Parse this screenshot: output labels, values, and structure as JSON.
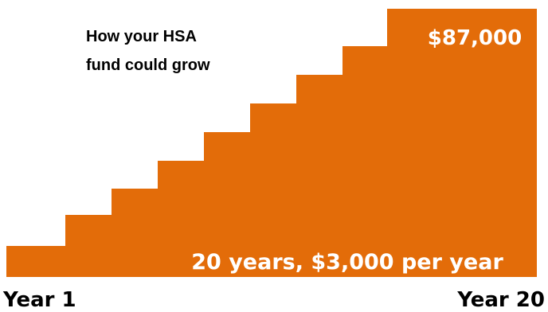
{
  "chart_data": {
    "type": "bar",
    "title_lines": [
      "How your HSA",
      "fund could grow"
    ],
    "final_value_label": "$87,000",
    "summary_label": "20 years, $3,000 per year",
    "x_start_label": "Year 1",
    "x_end_label": "Year 20",
    "xlabel": "",
    "ylabel": "",
    "bar_color": "#E36C09"
  }
}
